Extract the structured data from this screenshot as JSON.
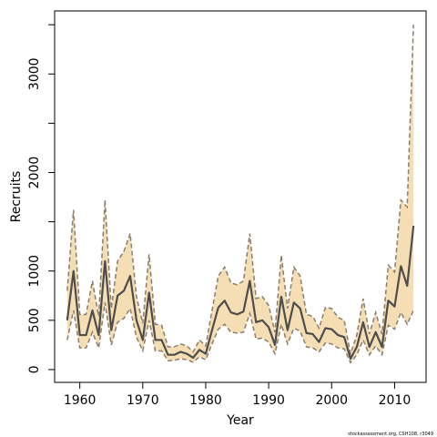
{
  "chart_data": {
    "type": "line",
    "xlabel": "Year",
    "ylabel": "Recruits",
    "xlim": [
      1956,
      2015
    ],
    "ylim": [
      -130,
      3640
    ],
    "x_ticks": [
      1960,
      1970,
      1980,
      1990,
      2000,
      2010
    ],
    "x_tick_labels": [
      "1960",
      "1970",
      "1980",
      "1990",
      "2000",
      "2010"
    ],
    "y_ticks": [
      0,
      500,
      1000,
      2000,
      3000
    ],
    "y_tick_labels": [
      "0",
      "500",
      "1000",
      "2000",
      "3000"
    ],
    "y_minor_ticks": [
      1500,
      2500,
      3500
    ],
    "grid": false,
    "footnote": "stockassessment.org, CSH108, r3049",
    "colors": {
      "band": "#f5deb3",
      "line": "#4d4d4d",
      "bound": "#8b7d6b"
    },
    "x": [
      1958,
      1959,
      1960,
      1961,
      1962,
      1963,
      1964,
      1965,
      1966,
      1967,
      1968,
      1969,
      1970,
      1971,
      1972,
      1973,
      1974,
      1975,
      1976,
      1977,
      1978,
      1979,
      1980,
      1981,
      1982,
      1983,
      1984,
      1985,
      1986,
      1987,
      1988,
      1989,
      1990,
      1991,
      1992,
      1993,
      1994,
      1995,
      1996,
      1997,
      1998,
      1999,
      2000,
      2001,
      2002,
      2003,
      2004,
      2005,
      2006,
      2007,
      2008,
      2009,
      2010,
      2011,
      2012,
      2013
    ],
    "series": [
      {
        "role": "estimate",
        "values": [
          500,
          1000,
          350,
          350,
          600,
          350,
          1100,
          400,
          750,
          800,
          950,
          500,
          300,
          780,
          300,
          300,
          150,
          150,
          180,
          160,
          120,
          200,
          160,
          400,
          630,
          700,
          580,
          560,
          590,
          900,
          480,
          500,
          430,
          250,
          740,
          400,
          680,
          620,
          370,
          360,
          280,
          420,
          410,
          350,
          330,
          110,
          230,
          480,
          230,
          380,
          230,
          700,
          640,
          1050,
          850,
          1460
        ]
      },
      {
        "role": "upper",
        "values": [
          800,
          1620,
          560,
          560,
          900,
          540,
          1720,
          620,
          1100,
          1200,
          1380,
          740,
          470,
          1170,
          460,
          450,
          230,
          230,
          260,
          240,
          180,
          300,
          240,
          600,
          950,
          1040,
          880,
          860,
          900,
          1380,
          720,
          740,
          650,
          380,
          1160,
          620,
          1040,
          950,
          560,
          540,
          420,
          630,
          620,
          530,
          500,
          160,
          350,
          720,
          360,
          580,
          360,
          1060,
          990,
          1720,
          1650,
          3500
        ]
      },
      {
        "role": "lower",
        "values": [
          300,
          600,
          220,
          220,
          380,
          220,
          680,
          250,
          480,
          520,
          620,
          330,
          190,
          500,
          190,
          190,
          90,
          95,
          110,
          100,
          75,
          130,
          100,
          260,
          410,
          460,
          380,
          370,
          380,
          570,
          310,
          320,
          280,
          160,
          460,
          260,
          420,
          390,
          230,
          220,
          180,
          270,
          260,
          220,
          210,
          70,
          150,
          300,
          150,
          240,
          150,
          450,
          410,
          580,
          460,
          600
        ]
      }
    ]
  }
}
